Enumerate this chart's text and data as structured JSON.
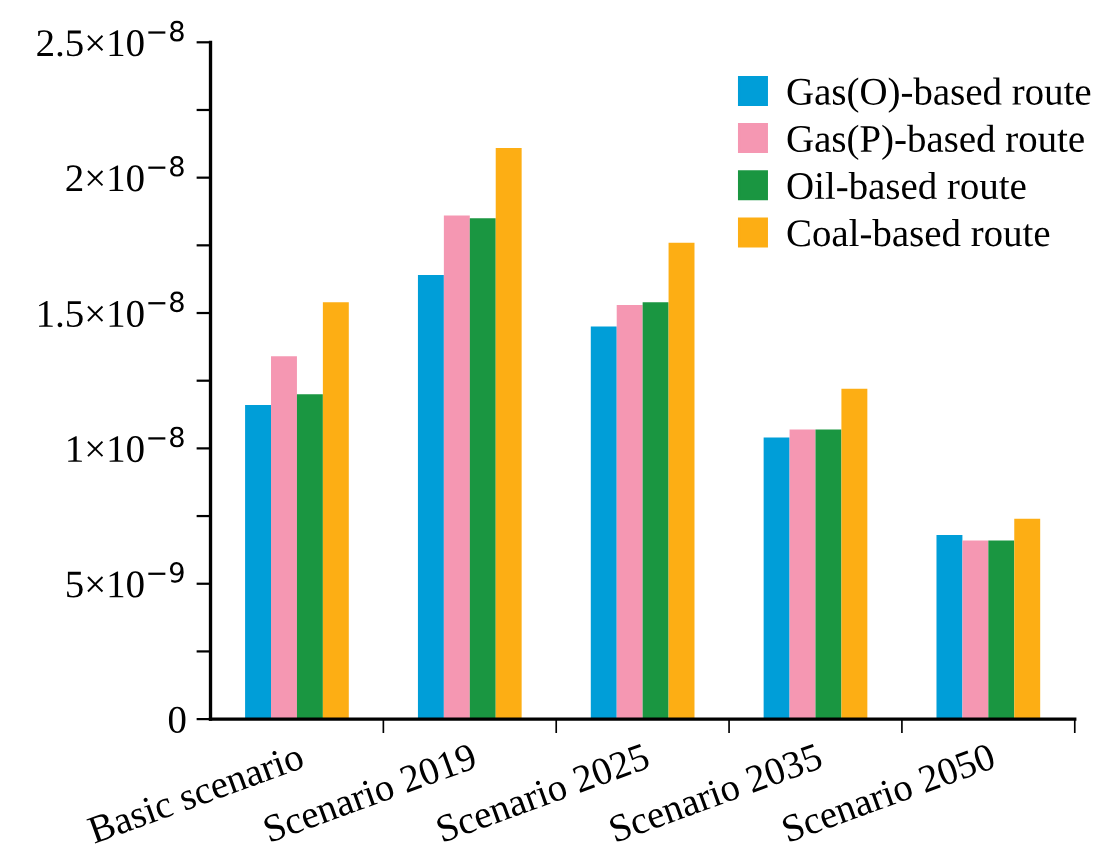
{
  "chart_data": {
    "type": "bar",
    "categories": [
      "Basic scenario",
      "Scenario 2019",
      "Scenario 2025",
      "Scenario 2035",
      "Scenario 2050"
    ],
    "series": [
      {
        "name": "Gas(O)-based route",
        "color": "#009ed8",
        "values": [
          1.16e-08,
          1.64e-08,
          1.45e-08,
          1.04e-08,
          6.8e-09
        ]
      },
      {
        "name": "Gas(P)-based route",
        "color": "#f597b2",
        "values": [
          1.34e-08,
          1.86e-08,
          1.53e-08,
          1.07e-08,
          6.6e-09
        ]
      },
      {
        "name": "Oil-based route",
        "color": "#1a9641",
        "values": [
          1.2e-08,
          1.85e-08,
          1.54e-08,
          1.07e-08,
          6.6e-09
        ]
      },
      {
        "name": "Coal-based route",
        "color": "#fdae14",
        "values": [
          1.54e-08,
          2.11e-08,
          1.76e-08,
          1.22e-08,
          7.4e-09
        ]
      }
    ],
    "ylim": [
      0,
      2.5e-08
    ],
    "yticks": [
      {
        "value": 0,
        "label": "0"
      },
      {
        "value": 2.5e-09,
        "label": null
      },
      {
        "value": 5e-09,
        "label": "5×10$^{−9}$"
      },
      {
        "value": 7.5e-09,
        "label": null
      },
      {
        "value": 1e-08,
        "label": "1×10$^{−8}$"
      },
      {
        "value": 1.25e-08,
        "label": null
      },
      {
        "value": 1.5e-08,
        "label": "1.5×10$^{−8}$"
      },
      {
        "value": 1.75e-08,
        "label": null
      },
      {
        "value": 2e-08,
        "label": "2×10$^{−8}$"
      },
      {
        "value": 2.25e-08,
        "label": null
      },
      {
        "value": 2.5e-08,
        "label": "2.5×10$^{−8}$"
      }
    ],
    "legend": "top right",
    "grid": false
  }
}
